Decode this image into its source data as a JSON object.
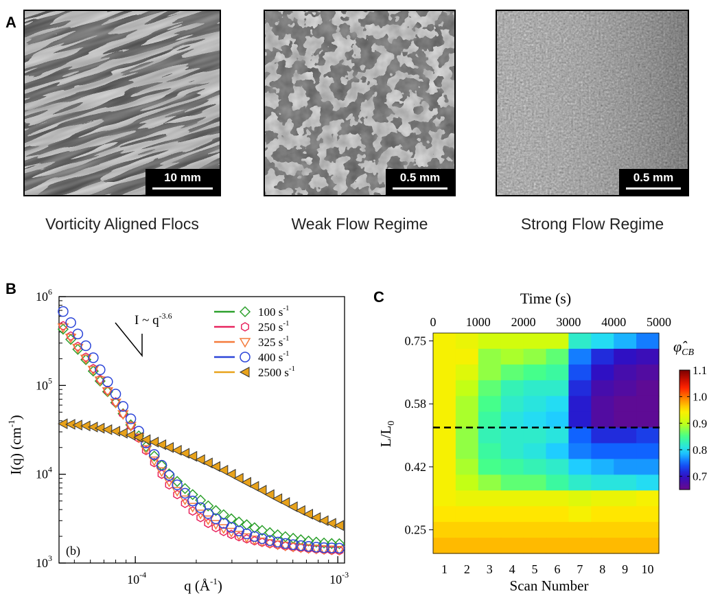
{
  "panel_a": {
    "letter": "A",
    "images": [
      {
        "caption": "Vorticity Aligned Flocs",
        "scale": "10 mm"
      },
      {
        "caption": "Weak Flow Regime",
        "scale": "0.5 mm"
      },
      {
        "caption": "Strong Flow Regime",
        "scale": "0.5 mm"
      }
    ]
  },
  "chart_data": [
    {
      "panel": "B",
      "type": "scatter",
      "xlabel": "q (Å",
      "xlabel_sup": "-1",
      "ylabel": "I(q) (cm",
      "ylabel_sup": "-1",
      "x_scale": "log",
      "y_scale": "log",
      "xlim": [
        4.2e-05,
        0.00108
      ],
      "ylim": [
        1000,
        1000000
      ],
      "x_ticks": [
        {
          "value": 0.0001,
          "base": "10",
          "exp": "-4"
        },
        {
          "value": 0.001,
          "base": "10",
          "exp": "-3"
        }
      ],
      "y_ticks": [
        {
          "value": 1000,
          "base": "10",
          "exp": "3"
        },
        {
          "value": 10000,
          "base": "10",
          "exp": "4"
        },
        {
          "value": 100000,
          "base": "10",
          "exp": "5"
        },
        {
          "value": 1000000,
          "base": "10",
          "exp": "6"
        }
      ],
      "annotation": {
        "text": "I ~ q",
        "sup": "-3.6"
      },
      "inset_label": "(b)",
      "legend_position": "top-right",
      "series": [
        {
          "name": "100 s",
          "unit_sup": "-1",
          "marker": "diamond",
          "color": "#2ca02c",
          "points": [
            [
              4.4e-05,
              430000
            ],
            [
              4.8e-05,
              330000
            ],
            [
              5.2e-05,
              255000
            ],
            [
              5.7e-05,
              195000
            ],
            [
              6.2e-05,
              145000
            ],
            [
              6.7e-05,
              112000
            ],
            [
              7.3e-05,
              85000
            ],
            [
              8e-05,
              64000
            ],
            [
              8.7e-05,
              48000
            ],
            [
              9.5e-05,
              36000
            ],
            [
              0.000104,
              27000
            ],
            [
              0.000113,
              20500
            ],
            [
              0.000124,
              16000
            ],
            [
              0.000135,
              12600
            ],
            [
              0.000147,
              10100
            ],
            [
              0.000161,
              8300
            ],
            [
              0.000176,
              6900
            ],
            [
              0.000192,
              5900
            ],
            [
              0.00021,
              5100
            ],
            [
              0.000229,
              4400
            ],
            [
              0.00025,
              3900
            ],
            [
              0.000273,
              3500
            ],
            [
              0.000298,
              3150
            ],
            [
              0.000325,
              2900
            ],
            [
              0.000355,
              2700
            ],
            [
              0.000388,
              2500
            ],
            [
              0.000423,
              2330
            ],
            [
              0.000462,
              2200
            ],
            [
              0.000505,
              2080
            ],
            [
              0.000551,
              1980
            ],
            [
              0.000602,
              1900
            ],
            [
              0.000657,
              1830
            ],
            [
              0.000717,
              1770
            ],
            [
              0.000783,
              1720
            ],
            [
              0.000855,
              1680
            ],
            [
              0.000933,
              1660
            ],
            [
              0.001018,
              1650
            ]
          ]
        },
        {
          "name": "250 s",
          "unit_sup": "-1",
          "marker": "hexagon",
          "color": "#e8245e",
          "points": [
            [
              4.4e-05,
              470000
            ],
            [
              4.8e-05,
              360000
            ],
            [
              5.2e-05,
              275000
            ],
            [
              5.7e-05,
              208000
            ],
            [
              6.2e-05,
              155000
            ],
            [
              6.7e-05,
              117000
            ],
            [
              7.3e-05,
              88000
            ],
            [
              8e-05,
              65000
            ],
            [
              8.7e-05,
              48000
            ],
            [
              9.5e-05,
              35000
            ],
            [
              0.000104,
              25500
            ],
            [
              0.000113,
              18500
            ],
            [
              0.000124,
              13500
            ],
            [
              0.000135,
              10000
            ],
            [
              0.000147,
              7600
            ],
            [
              0.000161,
              5900
            ],
            [
              0.000176,
              4700
            ],
            [
              0.000192,
              3850
            ],
            [
              0.00021,
              3250
            ],
            [
              0.000229,
              2800
            ],
            [
              0.00025,
              2500
            ],
            [
              0.000273,
              2270
            ],
            [
              0.000298,
              2100
            ],
            [
              0.000325,
              1980
            ],
            [
              0.000355,
              1870
            ],
            [
              0.000388,
              1780
            ],
            [
              0.000423,
              1710
            ],
            [
              0.000462,
              1650
            ],
            [
              0.000505,
              1600
            ],
            [
              0.000551,
              1550
            ],
            [
              0.000602,
              1510
            ],
            [
              0.000657,
              1480
            ],
            [
              0.000717,
              1450
            ],
            [
              0.000783,
              1430
            ],
            [
              0.000855,
              1410
            ],
            [
              0.000933,
              1390
            ],
            [
              0.001018,
              1380
            ]
          ]
        },
        {
          "name": "325 s",
          "unit_sup": "-1",
          "marker": "triangle-down",
          "color": "#f47a3a",
          "points": [
            [
              4.4e-05,
              450000
            ],
            [
              4.8e-05,
              345000
            ],
            [
              5.2e-05,
              265000
            ],
            [
              5.7e-05,
              200000
            ],
            [
              6.2e-05,
              150000
            ],
            [
              6.7e-05,
              114000
            ],
            [
              7.3e-05,
              86000
            ],
            [
              8e-05,
              64000
            ],
            [
              8.7e-05,
              47500
            ],
            [
              9.5e-05,
              35000
            ],
            [
              0.000104,
              26000
            ],
            [
              0.000113,
              19200
            ],
            [
              0.000124,
              14300
            ],
            [
              0.000135,
              10800
            ],
            [
              0.000147,
              8300
            ],
            [
              0.000161,
              6500
            ],
            [
              0.000176,
              5200
            ],
            [
              0.000192,
              4300
            ],
            [
              0.00021,
              3600
            ],
            [
              0.000229,
              3100
            ],
            [
              0.00025,
              2750
            ],
            [
              0.000273,
              2470
            ],
            [
              0.000298,
              2250
            ],
            [
              0.000325,
              2080
            ],
            [
              0.000355,
              1950
            ],
            [
              0.000388,
              1840
            ],
            [
              0.000423,
              1750
            ],
            [
              0.000462,
              1680
            ],
            [
              0.000505,
              1620
            ],
            [
              0.000551,
              1570
            ],
            [
              0.000602,
              1530
            ],
            [
              0.000657,
              1500
            ],
            [
              0.000717,
              1470
            ],
            [
              0.000783,
              1450
            ],
            [
              0.000855,
              1430
            ],
            [
              0.000933,
              1420
            ],
            [
              0.001018,
              1410
            ]
          ]
        },
        {
          "name": "400 s",
          "unit_sup": "-1",
          "marker": "circle",
          "color": "#2a44d8",
          "points": [
            [
              4.4e-05,
              680000
            ],
            [
              4.8e-05,
              510000
            ],
            [
              5.2e-05,
              380000
            ],
            [
              5.7e-05,
              280000
            ],
            [
              6.2e-05,
              205000
            ],
            [
              6.7e-05,
              150000
            ],
            [
              7.3e-05,
              110000
            ],
            [
              8e-05,
              80000
            ],
            [
              8.7e-05,
              58000
            ],
            [
              9.5e-05,
              42000
            ],
            [
              0.000104,
              30500
            ],
            [
              0.000113,
              22500
            ],
            [
              0.000124,
              16700
            ],
            [
              0.000135,
              12600
            ],
            [
              0.000147,
              9700
            ],
            [
              0.000161,
              7600
            ],
            [
              0.000176,
              6100
            ],
            [
              0.000192,
              5000
            ],
            [
              0.00021,
              4200
            ],
            [
              0.000229,
              3600
            ],
            [
              0.00025,
              3150
            ],
            [
              0.000273,
              2800
            ],
            [
              0.000298,
              2520
            ],
            [
              0.000325,
              2300
            ],
            [
              0.000355,
              2130
            ],
            [
              0.000388,
              1990
            ],
            [
              0.000423,
              1880
            ],
            [
              0.000462,
              1790
            ],
            [
              0.000505,
              1720
            ],
            [
              0.000551,
              1660
            ],
            [
              0.000602,
              1610
            ],
            [
              0.000657,
              1570
            ],
            [
              0.000717,
              1540
            ],
            [
              0.000783,
              1510
            ],
            [
              0.000855,
              1490
            ],
            [
              0.000933,
              1480
            ],
            [
              0.001018,
              1470
            ]
          ]
        },
        {
          "name": "2500 s",
          "unit_sup": "-1",
          "marker": "triangle-left",
          "color": "#e8a21a",
          "points": [
            [
              4.4e-05,
              37000
            ],
            [
              4.8e-05,
              36500
            ],
            [
              5.2e-05,
              35800
            ],
            [
              5.7e-05,
              35000
            ],
            [
              6.2e-05,
              34000
            ],
            [
              6.7e-05,
              33000
            ],
            [
              7.3e-05,
              31800
            ],
            [
              8e-05,
              30500
            ],
            [
              8.7e-05,
              29000
            ],
            [
              9.5e-05,
              27500
            ],
            [
              0.000104,
              26000
            ],
            [
              0.000113,
              24500
            ],
            [
              0.000124,
              23000
            ],
            [
              0.000135,
              21500
            ],
            [
              0.000147,
              20000
            ],
            [
              0.000161,
              18600
            ],
            [
              0.000176,
              17200
            ],
            [
              0.000192,
              15900
            ],
            [
              0.00021,
              14600
            ],
            [
              0.000229,
              13400
            ],
            [
              0.00025,
              12200
            ],
            [
              0.000273,
              11100
            ],
            [
              0.000298,
              10000
            ],
            [
              0.000325,
              9000
            ],
            [
              0.000355,
              8100
            ],
            [
              0.000388,
              7300
            ],
            [
              0.000423,
              6600
            ],
            [
              0.000462,
              5900
            ],
            [
              0.000505,
              5300
            ],
            [
              0.000551,
              4800
            ],
            [
              0.000602,
              4300
            ],
            [
              0.000657,
              3900
            ],
            [
              0.000717,
              3550
            ],
            [
              0.000783,
              3250
            ],
            [
              0.000855,
              3000
            ],
            [
              0.000933,
              2800
            ],
            [
              0.001018,
              2650
            ]
          ]
        }
      ]
    },
    {
      "panel": "C",
      "type": "heatmap",
      "xlabel": "Scan Number",
      "ylabel": "L/L",
      "ylabel_sub": "0",
      "top_axis_label": "Time (s)",
      "top_ticks": [
        {
          "label": "0",
          "scan": 0.0
        },
        {
          "label": "1000",
          "scan": 2.0
        },
        {
          "label": "2000",
          "scan": 4.0
        },
        {
          "label": "3000",
          "scan": 6.0
        },
        {
          "label": "4000",
          "scan": 8.0
        },
        {
          "label": "5000",
          "scan": 10.0
        }
      ],
      "x_ticks": [
        "1",
        "2",
        "3",
        "4",
        "5",
        "6",
        "7",
        "8",
        "9",
        "10"
      ],
      "y_ticks": [
        {
          "label": "0.75",
          "row": 0.5
        },
        {
          "label": "0.58",
          "row": 4.5
        },
        {
          "label": "0.42",
          "row": 8.5
        },
        {
          "label": "0.25",
          "row": 12.5
        }
      ],
      "dashed_line_row": 6.0,
      "colorbar": {
        "label": "φ̂",
        "label_sub": "CB",
        "min": 0.65,
        "max": 1.1,
        "ticks": [
          "1.1",
          "1.0",
          "0.9",
          "0.8",
          "0.7"
        ],
        "tick_values": [
          1.1,
          1.0,
          0.9,
          0.8,
          0.7
        ]
      },
      "values": [
        [
          0.94,
          0.93,
          0.91,
          0.91,
          0.91,
          0.91,
          0.82,
          0.8,
          0.78,
          0.76
        ],
        [
          0.94,
          0.94,
          0.88,
          0.89,
          0.88,
          0.86,
          0.76,
          0.72,
          0.7,
          0.69
        ],
        [
          0.94,
          0.92,
          0.88,
          0.86,
          0.85,
          0.84,
          0.74,
          0.7,
          0.68,
          0.67
        ],
        [
          0.94,
          0.9,
          0.86,
          0.83,
          0.82,
          0.82,
          0.72,
          0.68,
          0.67,
          0.66
        ],
        [
          0.94,
          0.89,
          0.85,
          0.82,
          0.81,
          0.8,
          0.71,
          0.67,
          0.66,
          0.66
        ],
        [
          0.94,
          0.89,
          0.84,
          0.81,
          0.8,
          0.79,
          0.71,
          0.67,
          0.66,
          0.66
        ],
        [
          0.94,
          0.88,
          0.83,
          0.82,
          0.82,
          0.81,
          0.75,
          0.72,
          0.72,
          0.73
        ],
        [
          0.94,
          0.88,
          0.84,
          0.82,
          0.81,
          0.79,
          0.76,
          0.75,
          0.75,
          0.75
        ],
        [
          0.94,
          0.89,
          0.85,
          0.84,
          0.83,
          0.82,
          0.79,
          0.78,
          0.77,
          0.77
        ],
        [
          0.94,
          0.9,
          0.88,
          0.86,
          0.86,
          0.84,
          0.82,
          0.81,
          0.81,
          0.8
        ],
        [
          0.94,
          0.93,
          0.93,
          0.93,
          0.93,
          0.93,
          0.92,
          0.93,
          0.93,
          0.94
        ],
        [
          0.95,
          0.95,
          0.95,
          0.95,
          0.95,
          0.95,
          0.94,
          0.95,
          0.95,
          0.95
        ],
        [
          0.96,
          0.96,
          0.96,
          0.96,
          0.96,
          0.96,
          0.96,
          0.96,
          0.96,
          0.96
        ],
        [
          0.97,
          0.97,
          0.97,
          0.97,
          0.97,
          0.97,
          0.97,
          0.97,
          0.97,
          0.97
        ]
      ]
    }
  ]
}
